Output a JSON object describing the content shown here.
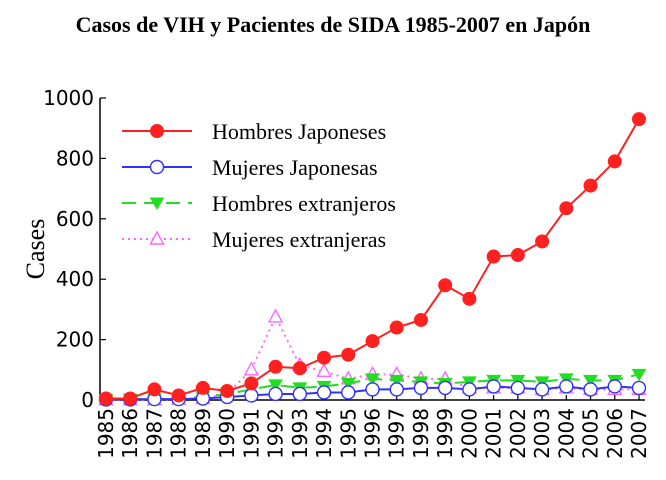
{
  "chart_data": {
    "type": "line",
    "title": "Casos de VIH y Pacientes de SIDA 1985-2007 en Japón",
    "xlabel": "",
    "ylabel": "Cases",
    "ylim": [
      0,
      1000
    ],
    "yticks": [
      0,
      200,
      400,
      600,
      800,
      1000
    ],
    "x": [
      "1985",
      "1986",
      "1987",
      "1988",
      "1989",
      "1990",
      "1991",
      "1992",
      "1993",
      "1994",
      "1995",
      "1996",
      "1997",
      "1998",
      "1999",
      "2000",
      "2001",
      "2002",
      "2003",
      "2004",
      "2005",
      "2006",
      "2007"
    ],
    "legend_position": "top-left",
    "grid": false,
    "series": [
      {
        "name": "Hombres Japoneses",
        "color": "#ff2020",
        "marker": "filled-circle",
        "line": "solid",
        "values": [
          5,
          5,
          35,
          15,
          40,
          30,
          55,
          110,
          105,
          140,
          150,
          195,
          240,
          265,
          380,
          335,
          475,
          480,
          525,
          635,
          710,
          790,
          930
        ]
      },
      {
        "name": "Mujeres Japonesas",
        "color": "#3030ff",
        "marker": "open-circle",
        "line": "solid",
        "values": [
          2,
          2,
          3,
          3,
          5,
          10,
          15,
          20,
          20,
          25,
          25,
          35,
          35,
          40,
          40,
          35,
          45,
          40,
          35,
          45,
          35,
          45,
          40
        ]
      },
      {
        "name": "Hombres extranjeros",
        "color": "#22dd22",
        "marker": "filled-triangle-down",
        "line": "dashed",
        "values": [
          2,
          3,
          3,
          5,
          10,
          20,
          35,
          50,
          40,
          45,
          55,
          70,
          65,
          60,
          55,
          60,
          65,
          65,
          60,
          70,
          65,
          65,
          85
        ]
      },
      {
        "name": "Mujeres extranjeras",
        "color": "#ff66ff",
        "marker": "open-triangle-up",
        "line": "dotted",
        "values": [
          1,
          1,
          1,
          3,
          5,
          20,
          100,
          275,
          115,
          95,
          70,
          85,
          85,
          70,
          70,
          40,
          40,
          40,
          35,
          40,
          35,
          35,
          35
        ]
      }
    ]
  }
}
